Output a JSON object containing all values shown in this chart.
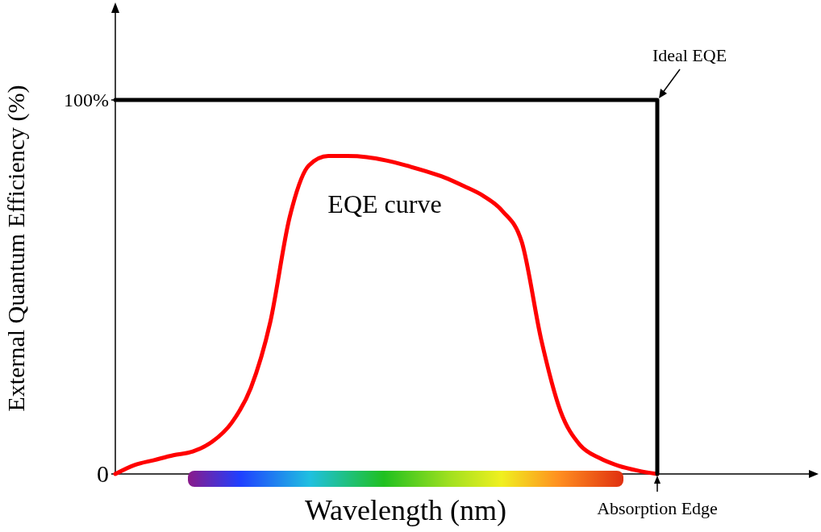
{
  "chart_data": {
    "type": "line",
    "xlabel": "Wavelength (nm)",
    "ylabel": "External Quantum Efficiency (%)",
    "categories": [
      null,
      null,
      null,
      null,
      null,
      null,
      null,
      null,
      null,
      null,
      null,
      null,
      null,
      null,
      null,
      null,
      null,
      null,
      null,
      null,
      null,
      null,
      null,
      null,
      null,
      null,
      null,
      null,
      null,
      null,
      null,
      null,
      null,
      null,
      null,
      null,
      null
    ],
    "ylim": [
      0,
      125
    ],
    "yticks": [
      {
        "value": 0,
        "label": "0"
      },
      {
        "value": 100,
        "label": "100%"
      }
    ],
    "tick_labels": "y",
    "series": [
      {
        "name": "EQE curve",
        "type": "line",
        "color": "#ff0000",
        "values": [
          0,
          2.4,
          3.7,
          5,
          6,
          8.6,
          13.6,
          23,
          40.5,
          68.5,
          82.5,
          85,
          85,
          84.7,
          83.8,
          82.5,
          81,
          79.3,
          77,
          74.4,
          70.3,
          62,
          36,
          16.8,
          7.8,
          4.3,
          2.2,
          0.9,
          0,
          null,
          null,
          null,
          null,
          null,
          null,
          null,
          null
        ]
      },
      {
        "name": "Ideal EQE",
        "type": "step",
        "color": "#000000",
        "values": [
          100,
          100,
          100,
          100,
          100,
          100,
          100,
          100,
          100,
          100,
          100,
          100,
          100,
          100,
          100,
          100,
          100,
          100,
          100,
          100,
          100,
          100,
          100,
          100,
          100,
          100,
          100,
          100,
          0,
          null,
          null,
          null,
          null,
          null,
          null,
          null,
          null
        ]
      }
    ],
    "annotations": [
      "Absorption Edge"
    ]
  }
}
